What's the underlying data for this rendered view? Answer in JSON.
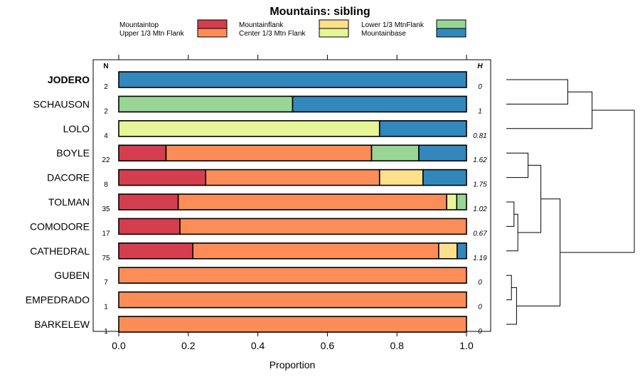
{
  "chart_data": {
    "type": "bar",
    "stacked": true,
    "orientation": "horizontal",
    "title": "Mountains: sibling",
    "xlabel": "Proportion",
    "ylabel": "",
    "xlim": [
      0,
      1
    ],
    "xticks": [
      "0.0",
      "0.2",
      "0.4",
      "0.6",
      "0.8",
      "1.0"
    ],
    "xtick_values": [
      0,
      0.2,
      0.4,
      0.6,
      0.8,
      1.0
    ],
    "n_header": "N",
    "h_header": "H",
    "legend_position": "top",
    "legend": [
      {
        "name": "Mountaintop",
        "color": "#d53e4f"
      },
      {
        "name": "Upper 1/3 Mtn Flank",
        "color": "#fc8d59"
      },
      {
        "name": "Mountainflank",
        "color": "#fee08b"
      },
      {
        "name": "Center 1/3 Mtn Flank",
        "color": "#e6f598"
      },
      {
        "name": "Lower 1/3 MtnFlank",
        "color": "#99d594"
      },
      {
        "name": "Mountainbase",
        "color": "#3288bd"
      }
    ],
    "rows": [
      {
        "label": "JODERO",
        "bold": true,
        "n": "2",
        "h": "0",
        "values": [
          0,
          0,
          0,
          0,
          0,
          1.0
        ]
      },
      {
        "label": "SCHAUSON",
        "bold": false,
        "n": "2",
        "h": "1",
        "values": [
          0,
          0,
          0,
          0,
          0.5,
          0.5
        ]
      },
      {
        "label": "LOLO",
        "bold": false,
        "n": "4",
        "h": "0.81",
        "values": [
          0,
          0,
          0,
          0.75,
          0,
          0.25
        ]
      },
      {
        "label": "BOYLE",
        "bold": false,
        "n": "22",
        "h": "1.62",
        "values": [
          0.136,
          0.591,
          0,
          0,
          0.136,
          0.137
        ]
      },
      {
        "label": "DACORE",
        "bold": false,
        "n": "8",
        "h": "1.75",
        "values": [
          0.25,
          0.5,
          0.125,
          0,
          0,
          0.125
        ]
      },
      {
        "label": "TOLMAN",
        "bold": false,
        "n": "35",
        "h": "1.02",
        "values": [
          0.171,
          0.772,
          0,
          0.029,
          0.028,
          0
        ]
      },
      {
        "label": "COMODORE",
        "bold": false,
        "n": "17",
        "h": "0.67",
        "values": [
          0.176,
          0.824,
          0,
          0,
          0,
          0
        ]
      },
      {
        "label": "CATHEDRAL",
        "bold": false,
        "n": "75",
        "h": "1.19",
        "values": [
          0.213,
          0.707,
          0.053,
          0,
          0,
          0.027
        ]
      },
      {
        "label": "GUBEN",
        "bold": false,
        "n": "7",
        "h": "0",
        "values": [
          0,
          1.0,
          0,
          0,
          0,
          0
        ]
      },
      {
        "label": "EMPEDRADO",
        "bold": false,
        "n": "1",
        "h": "0",
        "values": [
          0,
          1.0,
          0,
          0,
          0,
          0
        ]
      },
      {
        "label": "BARKELEW",
        "bold": false,
        "n": "1",
        "h": "0",
        "values": [
          0,
          1.0,
          0,
          0,
          0,
          0
        ]
      }
    ],
    "dendrogram": {
      "description": "hierarchical clustering of rows; heights are relative merge heights (0-1)",
      "merges": [
        {
          "a": "JODERO",
          "b": "SCHAUSON",
          "height": 0.48
        },
        {
          "a": "JODERO+SCHAUSON",
          "b": "LOLO",
          "height": 0.67
        },
        {
          "a": "BOYLE",
          "b": "DACORE",
          "height": 0.17
        },
        {
          "a": "TOLMAN",
          "b": "COMODORE",
          "height": 0.06
        },
        {
          "a": "TOLMAN+COMODORE",
          "b": "CATHEDRAL",
          "height": 0.09
        },
        {
          "a": "BOYLE+DACORE",
          "b": "TOLMAN+COMODORE+CATHEDRAL",
          "height": 0.27
        },
        {
          "a": "GUBEN",
          "b": "EMPEDRADO",
          "height": 0.04
        },
        {
          "a": "GUBEN+EMPEDRADO",
          "b": "BARKELEW",
          "height": 0.08
        },
        {
          "a": "BOYLE..CATHEDRAL",
          "b": "GUBEN+EMPEDRADO+BARKELEW",
          "height": 0.42
        },
        {
          "a": "JODERO+SCHAUSON+LOLO",
          "b": "BOYLE..BARKELEW",
          "height": 1.0
        }
      ]
    }
  }
}
